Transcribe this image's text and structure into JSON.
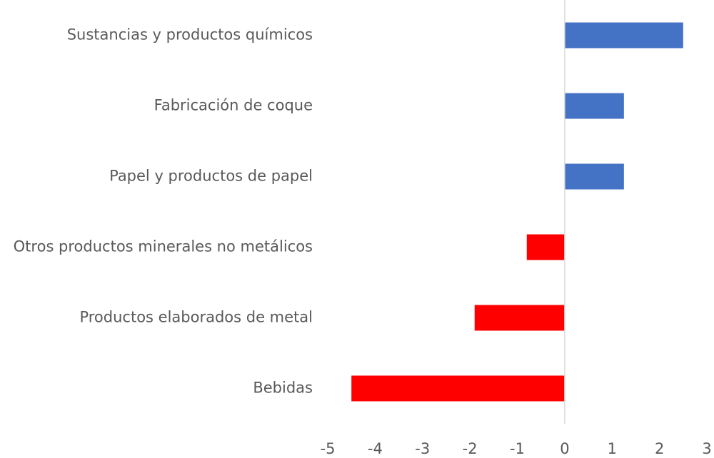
{
  "chart_data": {
    "type": "bar",
    "orientation": "horizontal",
    "categories": [
      "Sustancias y productos químicos",
      "Fabricación de coque",
      "Papel y productos de papel",
      "Otros productos minerales no metálicos",
      "Productos elaborados de metal",
      "Bebidas"
    ],
    "values": [
      2.5,
      1.25,
      1.25,
      -0.8,
      -1.9,
      -4.5
    ],
    "xlim": [
      -5,
      3
    ],
    "xticks": [
      "-5",
      "-4",
      "-3",
      "-2",
      "-1",
      "0",
      "1",
      "2",
      "3"
    ],
    "title": "",
    "xlabel": "",
    "ylabel": "",
    "grid": false,
    "legend": "none",
    "colors": {
      "positive": "#4472c4",
      "negative": "#ff0000",
      "axis": "#d9d9d9",
      "text": "#595959"
    }
  }
}
